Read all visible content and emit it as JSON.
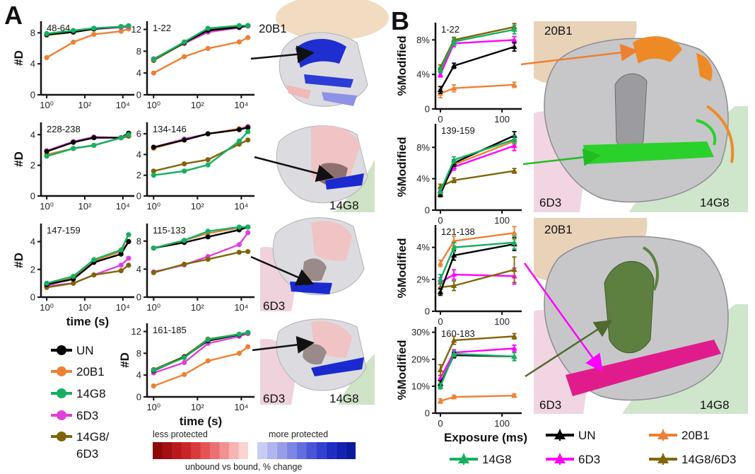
{
  "figure": {
    "panel_a_letter": "A",
    "panel_b_letter": "B",
    "antibody_labels": {
      "ab1": "20B1",
      "ab2": "14G8",
      "ab3": "6D3"
    },
    "protection_scale": {
      "less_label": "less protected",
      "more_label": "more protected",
      "caption": "unbound vs bound, % change",
      "less_colors": [
        "#8b0a0a",
        "#a30f12",
        "#b81a1c",
        "#c92629",
        "#d93a3a",
        "#e45454",
        "#ec7070",
        "#f39191",
        "#f8b3b3",
        "#fcd3d3"
      ],
      "more_colors": [
        "#c9ccf2",
        "#b0b5ee",
        "#979ee9",
        "#7d86e3",
        "#636ddd",
        "#4955d6",
        "#323fcf",
        "#1f2cc4",
        "#1422b2",
        "#0d1a9c"
      ]
    }
  },
  "legend_a": {
    "entries": [
      {
        "name": "UN",
        "color": "#000000"
      },
      {
        "name": "20B1",
        "color": "#ee8033"
      },
      {
        "name": "14G8",
        "color": "#14b060"
      },
      {
        "name": "6D3",
        "color": "#e040d8"
      },
      {
        "name": "14G8/",
        "name2": "6D3",
        "color": "#7f6508"
      }
    ]
  },
  "legend_b": {
    "entries": [
      {
        "name": "UN",
        "color": "#000000"
      },
      {
        "name": "20B1",
        "color": "#ee8033"
      },
      {
        "name": "14G8",
        "color": "#14b060"
      },
      {
        "name": "6D3",
        "color": "#ff00ff"
      },
      {
        "name": "14G8/6D3",
        "color": "#7f6508"
      }
    ]
  },
  "chart_data": [
    {
      "id": "a1",
      "type": "line",
      "title": "48-64",
      "ylabel": "#D",
      "xlabel": "",
      "x_scale": "log10",
      "x": [
        1,
        25,
        300,
        8000,
        20000
      ],
      "ylim": [
        0,
        9.5
      ],
      "yticks": [
        0,
        4,
        8
      ],
      "xticks": [
        "10⁰",
        "10²",
        "10⁴"
      ],
      "series": [
        {
          "name": "UN",
          "values": [
            7.8,
            8.1,
            8.5,
            8.8,
            8.9
          ]
        },
        {
          "name": "20B1",
          "values": [
            4.8,
            6.8,
            7.8,
            8.2,
            8.5
          ]
        },
        {
          "name": "14G8",
          "values": [
            7.9,
            8.3,
            8.6,
            8.8,
            8.9
          ]
        },
        {
          "name": "6D3",
          "values": [
            7.8,
            8.1,
            8.5,
            8.7,
            8.8
          ]
        },
        {
          "name": "14G8/6D3",
          "values": [
            7.7,
            8.1,
            8.5,
            8.8,
            8.9
          ]
        }
      ]
    },
    {
      "id": "a2",
      "type": "line",
      "title": "1-22",
      "ylabel": "",
      "xlabel": "",
      "x_scale": "log10",
      "x": [
        1,
        25,
        300,
        8000,
        20000
      ],
      "ylim": [
        0,
        13.5
      ],
      "yticks": [
        0,
        4,
        8,
        12
      ],
      "xticks": [
        "10⁰",
        "10²",
        "10⁴"
      ],
      "series": [
        {
          "name": "UN",
          "values": [
            6.5,
            9.6,
            11.8,
            12.4,
            12.7
          ]
        },
        {
          "name": "20B1",
          "values": [
            4.0,
            7.0,
            8.5,
            9.7,
            10.5
          ]
        },
        {
          "name": "14G8",
          "values": [
            6.5,
            9.7,
            12.2,
            12.7,
            12.7
          ]
        },
        {
          "name": "6D3",
          "values": [
            6.6,
            9.4,
            11.5,
            12.3,
            12.6
          ]
        },
        {
          "name": "14G8/6D3",
          "values": [
            6.3,
            9.5,
            11.9,
            12.5,
            12.7
          ]
        }
      ]
    },
    {
      "id": "a3",
      "type": "line",
      "title": "228-238",
      "ylabel": "#D",
      "xlabel": "",
      "x_scale": "log10",
      "x": [
        1,
        25,
        300,
        8000,
        20000
      ],
      "ylim": [
        0,
        4.8
      ],
      "yticks": [
        0,
        2,
        4
      ],
      "xticks": [
        "10⁰",
        "10²",
        "10⁴"
      ],
      "series": [
        {
          "name": "UN",
          "values": [
            2.9,
            3.5,
            3.8,
            3.8,
            4.1
          ]
        },
        {
          "name": "20B1",
          "values": [
            2.7,
            3.1,
            3.3,
            3.8,
            3.9
          ]
        },
        {
          "name": "14G8",
          "values": [
            2.6,
            3.1,
            3.3,
            3.8,
            4.0
          ]
        },
        {
          "name": "6D3",
          "values": [
            2.95,
            3.55,
            3.85,
            3.8,
            3.9
          ]
        },
        {
          "name": "14G8/6D3",
          "values": [
            2.6,
            3.1,
            3.3,
            3.8,
            3.9
          ]
        }
      ]
    },
    {
      "id": "a4",
      "type": "line",
      "title": "134-146",
      "ylabel": "",
      "xlabel": "",
      "x_scale": "log10",
      "x": [
        1,
        25,
        300,
        8000,
        20000
      ],
      "ylim": [
        0,
        7.1
      ],
      "yticks": [
        0,
        2,
        4,
        6
      ],
      "xticks": [
        "10⁰",
        "10²",
        "10⁴"
      ],
      "series": [
        {
          "name": "UN",
          "values": [
            4.7,
            5.4,
            6.0,
            6.4,
            6.6
          ]
        },
        {
          "name": "20B1",
          "values": [
            4.6,
            5.4,
            6.0,
            6.5,
            6.7
          ]
        },
        {
          "name": "14G8",
          "values": [
            2.0,
            2.4,
            3.0,
            5.3,
            6.2
          ]
        },
        {
          "name": "6D3",
          "values": [
            4.7,
            5.5,
            6.0,
            6.4,
            6.7
          ]
        },
        {
          "name": "14G8/6D3",
          "values": [
            2.4,
            3.1,
            3.5,
            5.0,
            5.4
          ]
        }
      ]
    },
    {
      "id": "a5",
      "type": "line",
      "title": "147-159",
      "ylabel": "#D",
      "xlabel": "time (s)",
      "x_scale": "log10",
      "x": [
        1,
        25,
        300,
        8000,
        20000
      ],
      "ylim": [
        0,
        5.3
      ],
      "yticks": [
        0,
        2,
        4
      ],
      "xticks": [
        "10⁰",
        "10²",
        "10⁴"
      ],
      "series": [
        {
          "name": "UN",
          "values": [
            0.9,
            1.3,
            2.5,
            3.1,
            4.0
          ]
        },
        {
          "name": "20B1",
          "values": [
            0.9,
            1.4,
            2.6,
            3.3,
            4.0
          ]
        },
        {
          "name": "14G8",
          "values": [
            1.0,
            1.5,
            2.7,
            3.4,
            4.5
          ]
        },
        {
          "name": "6D3",
          "values": [
            0.8,
            1.0,
            1.6,
            2.3,
            2.8
          ]
        },
        {
          "name": "14G8/6D3",
          "values": [
            0.7,
            1.0,
            1.6,
            1.9,
            2.3
          ]
        }
      ]
    },
    {
      "id": "a6",
      "type": "line",
      "title": "115-133",
      "ylabel": "",
      "xlabel": "",
      "x_scale": "log10",
      "x": [
        1,
        25,
        300,
        8000,
        20000
      ],
      "ylim": [
        0,
        10.5
      ],
      "yticks": [
        0,
        4,
        8
      ],
      "xticks": [
        "10⁰",
        "10²",
        "10⁴"
      ],
      "series": [
        {
          "name": "UN",
          "values": [
            7.0,
            7.8,
            8.6,
            9.6,
            10.0
          ]
        },
        {
          "name": "20B1",
          "values": [
            7.0,
            8.1,
            9.1,
            9.9,
            10.0
          ]
        },
        {
          "name": "14G8",
          "values": [
            7.0,
            8.1,
            9.4,
            10.0,
            10.0
          ]
        },
        {
          "name": "6D3",
          "values": [
            3.6,
            4.6,
            5.8,
            7.5,
            9.2
          ]
        },
        {
          "name": "14G8/6D3",
          "values": [
            3.5,
            4.7,
            5.4,
            6.4,
            6.5
          ]
        }
      ]
    },
    {
      "id": "a7",
      "type": "line",
      "title": "161-185",
      "ylabel": "#D",
      "xlabel": "time (s)",
      "x_scale": "log10",
      "x": [
        1,
        25,
        300,
        8000,
        20000
      ],
      "ylim": [
        0,
        13.5
      ],
      "yticks": [
        0,
        4,
        8,
        12
      ],
      "xticks": [
        "10⁰",
        "10²",
        "10⁴"
      ],
      "series": [
        {
          "name": "UN",
          "values": [
            4.8,
            7.3,
            10.3,
            11.4,
            11.8
          ]
        },
        {
          "name": "20B1",
          "values": [
            2.0,
            4.1,
            6.6,
            8.0,
            9.2
          ]
        },
        {
          "name": "14G8",
          "values": [
            4.9,
            7.2,
            10.5,
            11.5,
            11.8
          ]
        },
        {
          "name": "6D3",
          "values": [
            4.4,
            6.3,
            9.8,
            11.1,
            11.6
          ]
        },
        {
          "name": "14G8/6D3",
          "values": [
            5.0,
            7.4,
            10.6,
            11.5,
            11.8
          ]
        }
      ]
    },
    {
      "id": "b1",
      "type": "line",
      "title": "1-22",
      "ylabel": "%Modified",
      "xlabel": "",
      "x_scale": "linear",
      "x": [
        0,
        22,
        120
      ],
      "xlim": [
        -8,
        132
      ],
      "xticks": [
        0,
        100
      ],
      "ylim": [
        0,
        10
      ],
      "yticks": [
        0,
        4,
        8
      ],
      "ysuffix": "%",
      "series": [
        {
          "name": "UN",
          "values": [
            2.2,
            5.0,
            7.2
          ],
          "errors": [
            0.4,
            0.3,
            0.5
          ]
        },
        {
          "name": "20B1",
          "values": [
            1.8,
            2.4,
            2.8
          ],
          "errors": [
            0.5,
            0.4,
            0.3
          ]
        },
        {
          "name": "14G8",
          "values": [
            4.5,
            7.8,
            9.2
          ],
          "errors": [
            0.3,
            0.4,
            0.5
          ]
        },
        {
          "name": "6D3",
          "values": [
            4.0,
            7.6,
            8.0
          ],
          "errors": [
            0.3,
            0.4,
            0.4
          ]
        },
        {
          "name": "14G8/6D3",
          "values": [
            4.8,
            8.0,
            9.5
          ],
          "errors": [
            0.3,
            0.3,
            0.4
          ]
        }
      ]
    },
    {
      "id": "b2",
      "type": "line",
      "title": "139-159",
      "ylabel": "%Modified",
      "xlabel": "",
      "x_scale": "linear",
      "x": [
        0,
        22,
        120
      ],
      "xlim": [
        -8,
        132
      ],
      "xticks": [
        0,
        100
      ],
      "ylim": [
        0,
        11
      ],
      "yticks": [
        0,
        4,
        8
      ],
      "ysuffix": "%",
      "series": [
        {
          "name": "UN",
          "values": [
            2.0,
            6.0,
            9.5
          ],
          "errors": [
            0.3,
            0.4,
            0.5
          ]
        },
        {
          "name": "20B1",
          "values": [
            2.2,
            5.8,
            8.8
          ],
          "errors": [
            0.3,
            0.4,
            0.5
          ]
        },
        {
          "name": "14G8",
          "values": [
            2.4,
            6.4,
            9.0
          ],
          "errors": [
            0.3,
            0.4,
            0.5
          ]
        },
        {
          "name": "6D3",
          "values": [
            2.5,
            5.5,
            8.2
          ],
          "errors": [
            0.3,
            0.4,
            0.6
          ]
        },
        {
          "name": "14G8/6D3",
          "values": [
            3.0,
            3.8,
            5.0
          ],
          "errors": [
            0.3,
            0.3,
            0.3
          ]
        }
      ]
    },
    {
      "id": "b3",
      "type": "line",
      "title": "121-138",
      "ylabel": "%Modified",
      "xlabel": "",
      "x_scale": "linear",
      "x": [
        0,
        22,
        120
      ],
      "xlim": [
        -8,
        132
      ],
      "xticks": [
        0,
        100
      ],
      "ylim": [
        0,
        5.4
      ],
      "yticks": [
        0,
        2,
        4
      ],
      "ysuffix": "%",
      "series": [
        {
          "name": "UN",
          "values": [
            1.2,
            3.5,
            4.2
          ],
          "errors": [
            0.2,
            0.3,
            0.4
          ]
        },
        {
          "name": "20B1",
          "values": [
            3.0,
            4.4,
            4.9
          ],
          "errors": [
            0.2,
            0.3,
            0.4
          ]
        },
        {
          "name": "14G8",
          "values": [
            2.0,
            4.0,
            4.3
          ],
          "errors": [
            0.3,
            0.3,
            0.4
          ]
        },
        {
          "name": "6D3",
          "values": [
            1.8,
            2.3,
            2.2
          ],
          "errors": [
            0.3,
            0.3,
            0.5
          ]
        },
        {
          "name": "14G8/6D3",
          "values": [
            1.5,
            1.6,
            2.6
          ],
          "errors": [
            0.3,
            0.3,
            0.8
          ]
        }
      ]
    },
    {
      "id": "b4",
      "type": "line",
      "title": "160-183",
      "ylabel": "%Modified",
      "xlabel": "Exposure (ms)",
      "x_scale": "linear",
      "x": [
        0,
        22,
        120
      ],
      "xlim": [
        -8,
        132
      ],
      "xticks": [
        0,
        100
      ],
      "ylim": [
        0,
        32
      ],
      "yticks": [
        0,
        10,
        20,
        30
      ],
      "ysuffix": "%",
      "series": [
        {
          "name": "UN",
          "values": [
            11.0,
            21.5,
            21.0
          ],
          "errors": [
            1.0,
            1.0,
            1.5
          ]
        },
        {
          "name": "20B1",
          "values": [
            4.5,
            6.0,
            6.5
          ],
          "errors": [
            0.8,
            0.6,
            0.6
          ]
        },
        {
          "name": "14G8",
          "values": [
            10.0,
            22.0,
            21.0
          ],
          "errors": [
            1.0,
            1.0,
            1.5
          ]
        },
        {
          "name": "6D3",
          "values": [
            13.0,
            22.5,
            24.0
          ],
          "errors": [
            1.0,
            1.0,
            1.2
          ]
        },
        {
          "name": "14G8/6D3",
          "values": [
            16.0,
            27.0,
            28.5
          ],
          "errors": [
            2.0,
            1.5,
            1.0
          ]
        }
      ]
    }
  ]
}
